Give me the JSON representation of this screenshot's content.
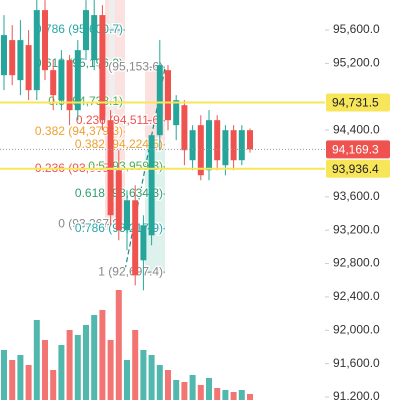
{
  "chart_data": {
    "type": "candlestick",
    "up_color": "#26a69a",
    "down_color": "#ef5350",
    "open": [
      95059,
      95479,
      94999,
      95419,
      94879,
      95839,
      95119,
      94759,
      95239,
      94639,
      95359,
      95239,
      95779,
      94519,
      93919,
      93199,
      93559,
      92839,
      93139,
      94339,
      95119,
      94459,
      94699,
      94039,
      94459,
      93919,
      94519,
      93979,
      94399,
      94039,
      94399
    ],
    "high": [
      95779,
      95659,
      95719,
      95599,
      95959,
      95959,
      95239,
      95359,
      95299,
      95479,
      95959,
      95959,
      95899,
      94639,
      94159,
      93679,
      93739,
      93379,
      94339,
      95479,
      95179,
      94819,
      94759,
      94459,
      94579,
      94639,
      94579,
      94459,
      94459,
      94459,
      94420
    ],
    "low": [
      94879,
      94939,
      94819,
      94759,
      94759,
      94999,
      94639,
      94639,
      94459,
      94519,
      95239,
      95119,
      94399,
      93259,
      93079,
      92959,
      92539,
      92479,
      93019,
      94159,
      94399,
      94279,
      93979,
      93919,
      93799,
      93799,
      93919,
      93859,
      93919,
      93979,
      94130
    ],
    "close": [
      95539,
      95059,
      95479,
      94879,
      95839,
      95119,
      94819,
      95239,
      94639,
      95359,
      95839,
      95779,
      94519,
      93379,
      93199,
      93559,
      92659,
      93259,
      94339,
      95179,
      94519,
      94759,
      94159,
      94399,
      93859,
      94519,
      94039,
      94399,
      94039,
      94399,
      94169.3
    ],
    "volume": [
      50,
      40,
      45,
      35,
      80,
      60,
      30,
      55,
      70,
      65,
      75,
      85,
      90,
      60,
      110,
      40,
      70,
      50,
      45,
      35,
      30,
      20,
      18,
      25,
      15,
      22,
      12,
      10,
      8,
      10,
      6
    ],
    "ylim": [
      91164,
      95960
    ],
    "yticks": [
      {
        "value": 95600,
        "label": "95,600.0"
      },
      {
        "value": 95200,
        "label": "95,200.0"
      },
      {
        "value": 94400,
        "label": "94,400.0"
      },
      {
        "value": 93600,
        "label": "93,600.0"
      },
      {
        "value": 93200,
        "label": "93,200.0"
      },
      {
        "value": 92800,
        "label": "92,800.0"
      },
      {
        "value": 92400,
        "label": "92,400.0"
      },
      {
        "value": 92000,
        "label": "92,000.0"
      },
      {
        "value": 91600,
        "label": "91,600.0"
      },
      {
        "value": 91200,
        "label": "91,200.0"
      }
    ],
    "price_lines": [
      {
        "value": 94731.5,
        "label": "94,731.5",
        "color": "#f7e55a",
        "text_color": "#222222"
      },
      {
        "value": 94169.3,
        "label": "94,169.3",
        "color": "#ef5350",
        "text_color": "#ffffff"
      },
      {
        "value": 93936.4,
        "label": "93,936.4",
        "color": "#f7e55a",
        "text_color": "#222222"
      }
    ],
    "fib_left": [
      {
        "label": "0.786 (95,600.7)",
        "price": 95600.7,
        "color": "#26a6a6"
      },
      {
        "label": "0.618 (95,196.9)",
        "price": 95196.9,
        "color": "#2e9e6e"
      },
      {
        "label": "0.5 (94,738.1)",
        "price": 94738.1,
        "color": "#4caf50"
      },
      {
        "label": "0.382 (94,379.3)",
        "price": 94379.3,
        "color": "#f0a030"
      },
      {
        "label": "0.236 (93,935.4)",
        "price": 93935.4,
        "color": "#ef5350"
      },
      {
        "label": "0 (93,267.9)",
        "price": 93267.9,
        "color": "#888888"
      }
    ],
    "fib_right": [
      {
        "label": "0 (95,153.6)",
        "price": 95153.6,
        "color": "#888888"
      },
      {
        "label": "0.236 (94,511.6)",
        "price": 94511.6,
        "color": "#ef5350"
      },
      {
        "label": "0.382 (94,224.5)",
        "price": 94224.5,
        "color": "#f0a030"
      },
      {
        "label": "0.5 (93,959.3)",
        "price": 93959.3,
        "color": "#4caf50"
      },
      {
        "label": "0.618 (93,634.3)",
        "price": 93634.3,
        "color": "#2e9e6e"
      },
      {
        "label": "0.786 (93,217.9)",
        "price": 93217.9,
        "color": "#26a6a6"
      },
      {
        "label": "1 (92,697.4)",
        "price": 92697.4,
        "color": "#888888"
      }
    ]
  }
}
